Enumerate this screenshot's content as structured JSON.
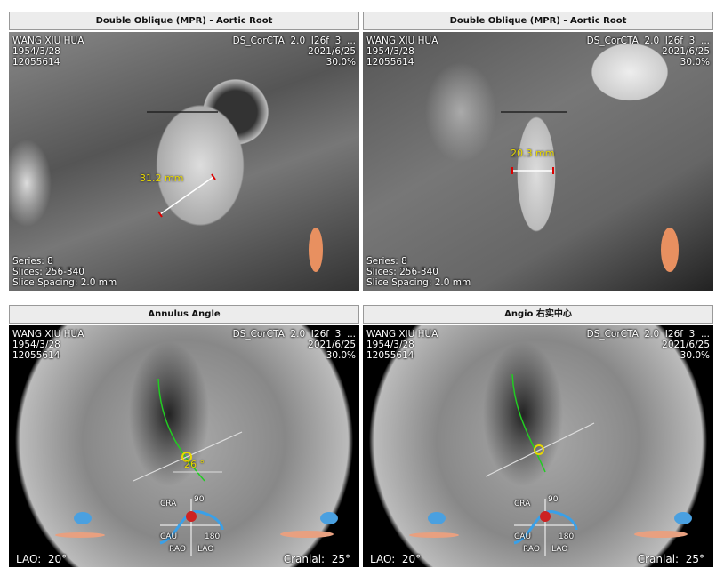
{
  "patient": {
    "name": "WANG XIU HUA",
    "dob": "1954/3/28",
    "id": "12055614"
  },
  "study": {
    "series_desc": "DS_CorCTA  2.0  I26f  3  ...",
    "date": "2021/6/25",
    "zoom": "30.0%"
  },
  "panels": [
    {
      "title": "Double Oblique (MPR) - Aortic Root",
      "measurement": "31.2 mm",
      "series": "Series: 8",
      "slices": "Slices: 256-340",
      "spacing": "Slice Spacing: 2.0 mm"
    },
    {
      "title": "Double Oblique (MPR) - Aortic Root",
      "measurement": "20.3 mm",
      "series": "Series: 8",
      "slices": "Slices: 256-340",
      "spacing": "Slice Spacing: 2.0 mm"
    },
    {
      "title": "Annulus Angle",
      "angle_label": "26 °",
      "lao_label": "LAO:",
      "lao_value": "20°",
      "cranial_label": "Cranial:",
      "cranial_value": "25°"
    },
    {
      "title": "Angio 右实中心",
      "lao_label": "LAO:",
      "lao_value": "20°",
      "cranial_label": "Cranial:",
      "cranial_value": "25°"
    }
  ],
  "gauge": {
    "cra": "CRA",
    "cau": "CAU",
    "rao": "RAO",
    "lao": "LAO",
    "deg90": "90",
    "deg180": "180"
  },
  "colors": {
    "measure": "#e8d800",
    "centerline": "#22cc22",
    "curve": "#3aa0e8",
    "marker": "#cc2222"
  }
}
